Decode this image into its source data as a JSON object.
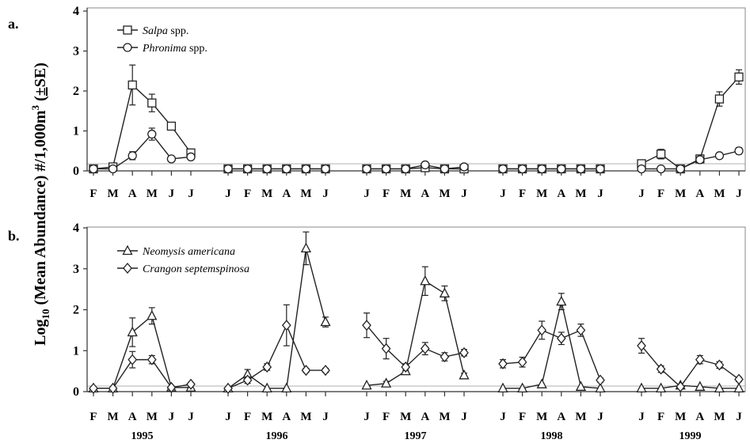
{
  "chart_data": [
    {
      "panel_label": "a.",
      "type": "line",
      "ylim": [
        0,
        4
      ],
      "yticks": [
        "0",
        "1",
        "2",
        "3",
        "4"
      ],
      "legend_position": "top-left",
      "groups": [
        {
          "year": "1995",
          "months": [
            "F",
            "M",
            "A",
            "M",
            "J",
            "J"
          ]
        },
        {
          "year": "1996",
          "months": [
            "J",
            "F",
            "M",
            "A",
            "M",
            "J"
          ]
        },
        {
          "year": "1997",
          "months": [
            "J",
            "F",
            "M",
            "A",
            "M",
            "J"
          ]
        },
        {
          "year": "1998",
          "months": [
            "J",
            "F",
            "M",
            "A",
            "M",
            "J"
          ]
        },
        {
          "year": "1999",
          "months": [
            "J",
            "F",
            "M",
            "A",
            "M",
            "J"
          ]
        }
      ],
      "series": [
        {
          "name_italic": "Salpa",
          "name_rest": " spp.",
          "marker": "square",
          "values": [
            [
              0.05,
              0.1,
              2.15,
              1.7,
              1.12,
              0.45
            ],
            [
              0.05,
              0.05,
              0.05,
              0.05,
              0.05,
              0.05
            ],
            [
              0.05,
              0.05,
              0.05,
              0.08,
              0.05,
              0.05
            ],
            [
              0.05,
              0.05,
              0.05,
              0.05,
              0.05,
              0.05
            ],
            [
              0.18,
              0.42,
              0.05,
              0.3,
              1.8,
              2.35
            ]
          ],
          "errors": [
            [
              0.02,
              0.03,
              0.5,
              0.22,
              0.08,
              0.08
            ],
            [
              0.01,
              0.01,
              0.01,
              0.01,
              0.01,
              0.01
            ],
            [
              0.01,
              0.01,
              0.01,
              0.03,
              0.01,
              0.01
            ],
            [
              0.01,
              0.01,
              0.01,
              0.01,
              0.01,
              0.01
            ],
            [
              0.05,
              0.12,
              0.02,
              0.08,
              0.18,
              0.18
            ]
          ]
        },
        {
          "name_italic": "Phronima",
          "name_rest": " spp.",
          "marker": "circle",
          "values": [
            [
              0.05,
              0.05,
              0.38,
              0.92,
              0.3,
              0.35
            ],
            [
              0.05,
              0.05,
              0.05,
              0.05,
              0.05,
              0.05
            ],
            [
              0.05,
              0.05,
              0.05,
              0.15,
              0.05,
              0.1
            ],
            [
              0.05,
              0.05,
              0.05,
              0.05,
              0.05,
              0.05
            ],
            [
              0.05,
              0.05,
              0.05,
              0.28,
              0.38,
              0.5
            ]
          ],
          "errors": [
            [
              0.01,
              0.01,
              0.1,
              0.15,
              0.03,
              0.03
            ],
            [
              0.01,
              0.01,
              0.01,
              0.01,
              0.01,
              0.01
            ],
            [
              0.01,
              0.01,
              0.01,
              0.06,
              0.01,
              0.02
            ],
            [
              0.01,
              0.01,
              0.01,
              0.01,
              0.01,
              0.01
            ],
            [
              0.01,
              0.01,
              0.01,
              0.06,
              0.07,
              0.08
            ]
          ]
        }
      ]
    },
    {
      "panel_label": "b.",
      "type": "line",
      "ylim": [
        0,
        4
      ],
      "yticks": [
        "0",
        "1",
        "2",
        "3",
        "4"
      ],
      "legend_position": "top-left",
      "groups": [
        {
          "year": "1995",
          "months": [
            "F",
            "M",
            "A",
            "M",
            "J",
            "J"
          ]
        },
        {
          "year": "1996",
          "months": [
            "J",
            "F",
            "M",
            "A",
            "M",
            "J"
          ]
        },
        {
          "year": "1997",
          "months": [
            "J",
            "F",
            "M",
            "A",
            "M",
            "J"
          ]
        },
        {
          "year": "1998",
          "months": [
            "J",
            "F",
            "M",
            "A",
            "M",
            "J"
          ]
        },
        {
          "year": "1999",
          "months": [
            "J",
            "F",
            "M",
            "A",
            "M",
            "J"
          ]
        }
      ],
      "series": [
        {
          "name_italic": "Neomysis americana",
          "name_rest": "",
          "marker": "triangle",
          "values": [
            [
              0.08,
              0.08,
              1.45,
              1.85,
              0.1,
              0.1
            ],
            [
              0.08,
              0.42,
              0.08,
              0.08,
              3.5,
              1.7
            ],
            [
              0.15,
              0.2,
              0.5,
              2.7,
              2.4,
              0.4
            ],
            [
              0.08,
              0.08,
              0.18,
              2.2,
              0.12,
              0.08
            ],
            [
              0.08,
              0.08,
              0.15,
              0.12,
              0.08,
              0.08
            ]
          ],
          "errors": [
            [
              0.02,
              0.02,
              0.35,
              0.2,
              0.03,
              0.03
            ],
            [
              0.02,
              0.12,
              0.02,
              0.02,
              0.4,
              0.12
            ],
            [
              0.03,
              0.05,
              0.08,
              0.35,
              0.18,
              0.05
            ],
            [
              0.02,
              0.02,
              0.04,
              0.2,
              0.03,
              0.02
            ],
            [
              0.02,
              0.02,
              0.03,
              0.03,
              0.02,
              0.02
            ]
          ]
        },
        {
          "name_italic": "Crangon septemspinosa",
          "name_rest": "",
          "marker": "diamond",
          "values": [
            [
              0.08,
              0.08,
              0.78,
              0.78,
              0.1,
              0.18
            ],
            [
              0.08,
              0.28,
              0.6,
              1.62,
              0.52,
              0.52
            ],
            [
              1.62,
              1.05,
              0.6,
              1.05,
              0.85,
              0.95
            ],
            [
              0.68,
              0.72,
              1.5,
              1.3,
              1.5,
              0.28
            ],
            [
              1.12,
              0.55,
              0.12,
              0.78,
              0.65,
              0.3
            ]
          ],
          "errors": [
            [
              0.02,
              0.02,
              0.2,
              0.1,
              0.03,
              0.04
            ],
            [
              0.02,
              0.08,
              0.08,
              0.5,
              0.05,
              0.05
            ],
            [
              0.3,
              0.25,
              0.08,
              0.15,
              0.1,
              0.08
            ],
            [
              0.1,
              0.12,
              0.22,
              0.15,
              0.15,
              0.05
            ],
            [
              0.18,
              0.08,
              0.03,
              0.1,
              0.08,
              0.05
            ]
          ]
        }
      ]
    }
  ],
  "y_axis_label": {
    "main": "Log",
    "subscript": "10",
    "rest": " (Mean Abundance) #/1,000m",
    "superscript": "3",
    "pm": "±",
    "se": "SE"
  }
}
